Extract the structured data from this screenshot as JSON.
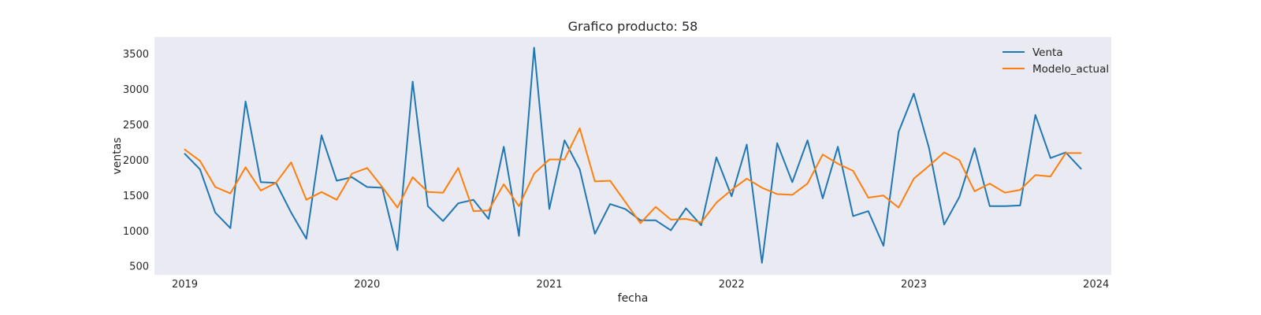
{
  "chart_data": {
    "type": "line",
    "title": "Grafico producto: 58",
    "xlabel": "fecha",
    "ylabel": "ventas",
    "x_ticks": [
      "2019",
      "2020",
      "2021",
      "2022",
      "2023",
      "2024"
    ],
    "y_ticks": [
      500,
      1000,
      1500,
      2000,
      2500,
      3000,
      3500
    ],
    "ylim": [
      380,
      3740
    ],
    "xlim": [
      "2018-11",
      "2024-02"
    ],
    "grid": false,
    "legend_position": "top-right",
    "background": "#eaeaf2",
    "x": [
      "2019-01",
      "2019-02",
      "2019-03",
      "2019-04",
      "2019-05",
      "2019-06",
      "2019-07",
      "2019-08",
      "2019-09",
      "2019-10",
      "2019-11",
      "2019-12",
      "2020-01",
      "2020-02",
      "2020-03",
      "2020-04",
      "2020-05",
      "2020-06",
      "2020-07",
      "2020-08",
      "2020-09",
      "2020-10",
      "2020-11",
      "2020-12",
      "2021-01",
      "2021-02",
      "2021-03",
      "2021-04",
      "2021-05",
      "2021-06",
      "2021-07",
      "2021-08",
      "2021-09",
      "2021-10",
      "2021-11",
      "2021-12",
      "2022-01",
      "2022-02",
      "2022-03",
      "2022-04",
      "2022-05",
      "2022-06",
      "2022-07",
      "2022-08",
      "2022-09",
      "2022-10",
      "2022-11",
      "2022-12",
      "2023-01",
      "2023-02",
      "2023-03",
      "2023-04",
      "2023-05",
      "2023-06",
      "2023-07",
      "2023-08",
      "2023-09",
      "2023-10",
      "2023-11",
      "2023-12"
    ],
    "series": [
      {
        "name": "Venta",
        "color": "#1f77b4",
        "values": [
          2090,
          1870,
          1260,
          1040,
          2830,
          1690,
          1680,
          1260,
          890,
          2350,
          1710,
          1760,
          1620,
          1610,
          730,
          3110,
          1350,
          1140,
          1390,
          1440,
          1170,
          2190,
          930,
          3590,
          1310,
          2280,
          1870,
          960,
          1380,
          1310,
          1150,
          1150,
          1010,
          1320,
          1080,
          2040,
          1490,
          2220,
          550,
          2240,
          1690,
          2280,
          1460,
          2190,
          1210,
          1280,
          790,
          2400,
          2940,
          2170,
          1090,
          1480,
          2170,
          1350,
          1350,
          1360,
          2640,
          2030,
          2110,
          1880
        ]
      },
      {
        "name": "Modelo_actual",
        "color": "#ff7f0e",
        "values": [
          2150,
          1990,
          1620,
          1530,
          1900,
          1570,
          1680,
          1970,
          1440,
          1550,
          1440,
          1810,
          1890,
          1620,
          1330,
          1760,
          1550,
          1540,
          1890,
          1280,
          1290,
          1660,
          1350,
          1810,
          2010,
          2010,
          2450,
          1700,
          1710,
          1410,
          1110,
          1340,
          1160,
          1170,
          1120,
          1400,
          1580,
          1740,
          1610,
          1520,
          1510,
          1670,
          2080,
          1950,
          1850,
          1470,
          1500,
          1330,
          1740,
          1920,
          2110,
          2000,
          1560,
          1670,
          1540,
          1580,
          1790,
          1770,
          2100,
          2100
        ]
      }
    ]
  }
}
